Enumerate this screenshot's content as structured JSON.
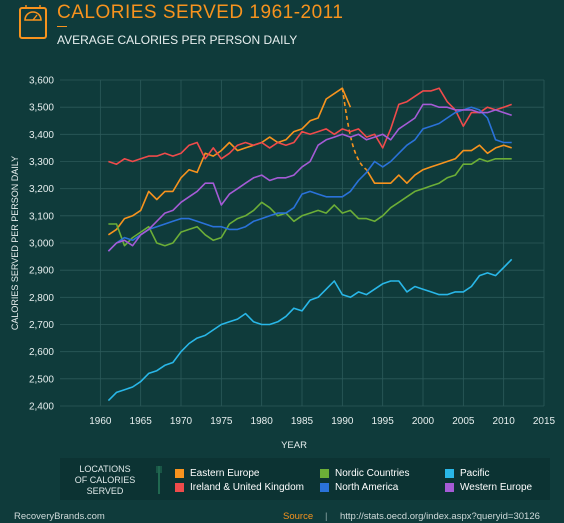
{
  "header": {
    "title": "CALORIES SERVED 1961-2011",
    "subtitle": "AVERAGE CALORIES PER PERSON DAILY"
  },
  "icons": {
    "header_icon": "scale-icon",
    "legend_icon": "fork-icon"
  },
  "legend": {
    "title_lines": [
      "LOCATIONS",
      "OF CALORIES",
      "SERVED"
    ]
  },
  "footer": {
    "brand": "RecoveryBrands.com",
    "source_label": "Source",
    "separator": "|",
    "url": "http://stats.oecd.org/index.aspx?queryid=30126"
  },
  "colors": {
    "background": "#0f3b3b",
    "title_accent": "#f7931e",
    "grid": "#2c5a5a"
  },
  "chart_data": {
    "type": "line",
    "title": "CALORIES SERVED 1961-2011",
    "subtitle": "AVERAGE CALORIES PER PERSON DAILY",
    "xlabel": "YEAR",
    "ylabel": "CALORIES SERVED PER PERSON DAILY",
    "xlim": [
      1955,
      2015
    ],
    "ylim": [
      2400,
      3600
    ],
    "x_ticks": [
      1960,
      1965,
      1970,
      1975,
      1980,
      1985,
      1990,
      1995,
      2000,
      2005,
      2010,
      2015
    ],
    "y_ticks": [
      2400,
      2500,
      2600,
      2700,
      2800,
      2900,
      3000,
      3100,
      3200,
      3300,
      3400,
      3500,
      3600
    ],
    "y_tick_labels": [
      "2,400",
      "2,500",
      "2,600",
      "2,700",
      "2,800",
      "2,900",
      "3,000",
      "3,100",
      "3,200",
      "3,300",
      "3,400",
      "3,500",
      "3,600"
    ],
    "grid": true,
    "legend_position": "bottom",
    "x": [
      1961,
      1962,
      1963,
      1964,
      1965,
      1966,
      1967,
      1968,
      1969,
      1970,
      1971,
      1972,
      1973,
      1974,
      1975,
      1976,
      1977,
      1978,
      1979,
      1980,
      1981,
      1982,
      1983,
      1984,
      1985,
      1986,
      1987,
      1988,
      1989,
      1990,
      1991,
      1992,
      1993,
      1994,
      1995,
      1996,
      1997,
      1998,
      1999,
      2000,
      2001,
      2002,
      2003,
      2004,
      2005,
      2006,
      2007,
      2008,
      2009,
      2010,
      2011
    ],
    "series": [
      {
        "name": "Eastern Europe",
        "color": "#f7931e",
        "dashed_gap": [
          1990,
          1993
        ],
        "values": [
          3030,
          3050,
          3090,
          3100,
          3120,
          3190,
          3160,
          3190,
          3190,
          3240,
          3270,
          3260,
          3330,
          3320,
          3340,
          3370,
          3340,
          3350,
          3360,
          3370,
          3390,
          3370,
          3380,
          3410,
          3420,
          3450,
          3460,
          3530,
          3550,
          3570,
          3500,
          null,
          3270,
          3220,
          3220,
          3220,
          3250,
          3220,
          3250,
          3270,
          3280,
          3290,
          3300,
          3310,
          3340,
          3340,
          3360,
          3330,
          3350,
          3360,
          3350
        ]
      },
      {
        "name": "Ireland & United Kingdom",
        "color": "#ef4b4b",
        "values": [
          3300,
          3290,
          3310,
          3300,
          3310,
          3320,
          3320,
          3330,
          3320,
          3330,
          3360,
          3370,
          3310,
          3350,
          3310,
          3330,
          3360,
          3370,
          3360,
          3370,
          3350,
          3370,
          3360,
          3370,
          3410,
          3400,
          3410,
          3420,
          3400,
          3420,
          3410,
          3420,
          3390,
          3400,
          3350,
          3420,
          3510,
          3520,
          3540,
          3560,
          3560,
          3570,
          3520,
          3490,
          3430,
          3480,
          3480,
          3500,
          3490,
          3500,
          3510
        ]
      },
      {
        "name": "Nordic Countries",
        "color": "#6cae37",
        "values": [
          3070,
          3070,
          2990,
          3020,
          3040,
          3060,
          3000,
          2990,
          3000,
          3040,
          3050,
          3060,
          3030,
          3010,
          3020,
          3070,
          3090,
          3100,
          3120,
          3150,
          3130,
          3100,
          3110,
          3080,
          3100,
          3110,
          3120,
          3110,
          3140,
          3110,
          3120,
          3090,
          3090,
          3080,
          3100,
          3130,
          3150,
          3170,
          3190,
          3200,
          3210,
          3220,
          3240,
          3250,
          3290,
          3290,
          3310,
          3300,
          3310,
          3310,
          3310
        ]
      },
      {
        "name": "North America",
        "color": "#2a72d9",
        "values": [
          2970,
          3000,
          3020,
          3010,
          3030,
          3050,
          3060,
          3070,
          3080,
          3090,
          3090,
          3080,
          3070,
          3060,
          3060,
          3050,
          3050,
          3060,
          3080,
          3090,
          3100,
          3110,
          3110,
          3130,
          3180,
          3190,
          3180,
          3170,
          3170,
          3170,
          3190,
          3230,
          3260,
          3300,
          3280,
          3300,
          3330,
          3360,
          3380,
          3420,
          3430,
          3440,
          3460,
          3480,
          3490,
          3500,
          3490,
          3460,
          3380,
          3370,
          3370
        ]
      },
      {
        "name": "Pacific",
        "color": "#29b7e8",
        "values": [
          2420,
          2450,
          2460,
          2470,
          2490,
          2520,
          2530,
          2550,
          2560,
          2600,
          2630,
          2650,
          2660,
          2680,
          2700,
          2710,
          2720,
          2740,
          2710,
          2700,
          2700,
          2710,
          2730,
          2760,
          2750,
          2790,
          2800,
          2830,
          2860,
          2810,
          2800,
          2820,
          2810,
          2830,
          2850,
          2860,
          2860,
          2820,
          2840,
          2830,
          2820,
          2810,
          2810,
          2820,
          2820,
          2840,
          2880,
          2890,
          2880,
          2910,
          2940
        ]
      },
      {
        "name": "Western Europe",
        "color": "#a55bd6",
        "values": [
          2970,
          3000,
          3010,
          2990,
          3030,
          3050,
          3080,
          3110,
          3120,
          3150,
          3170,
          3190,
          3220,
          3220,
          3140,
          3180,
          3200,
          3220,
          3240,
          3250,
          3230,
          3240,
          3240,
          3250,
          3280,
          3300,
          3360,
          3380,
          3390,
          3400,
          3390,
          3400,
          3380,
          3390,
          3400,
          3380,
          3420,
          3440,
          3460,
          3510,
          3510,
          3500,
          3500,
          3490,
          3490,
          3490,
          3480,
          3480,
          3490,
          3480,
          3470
        ]
      }
    ]
  }
}
